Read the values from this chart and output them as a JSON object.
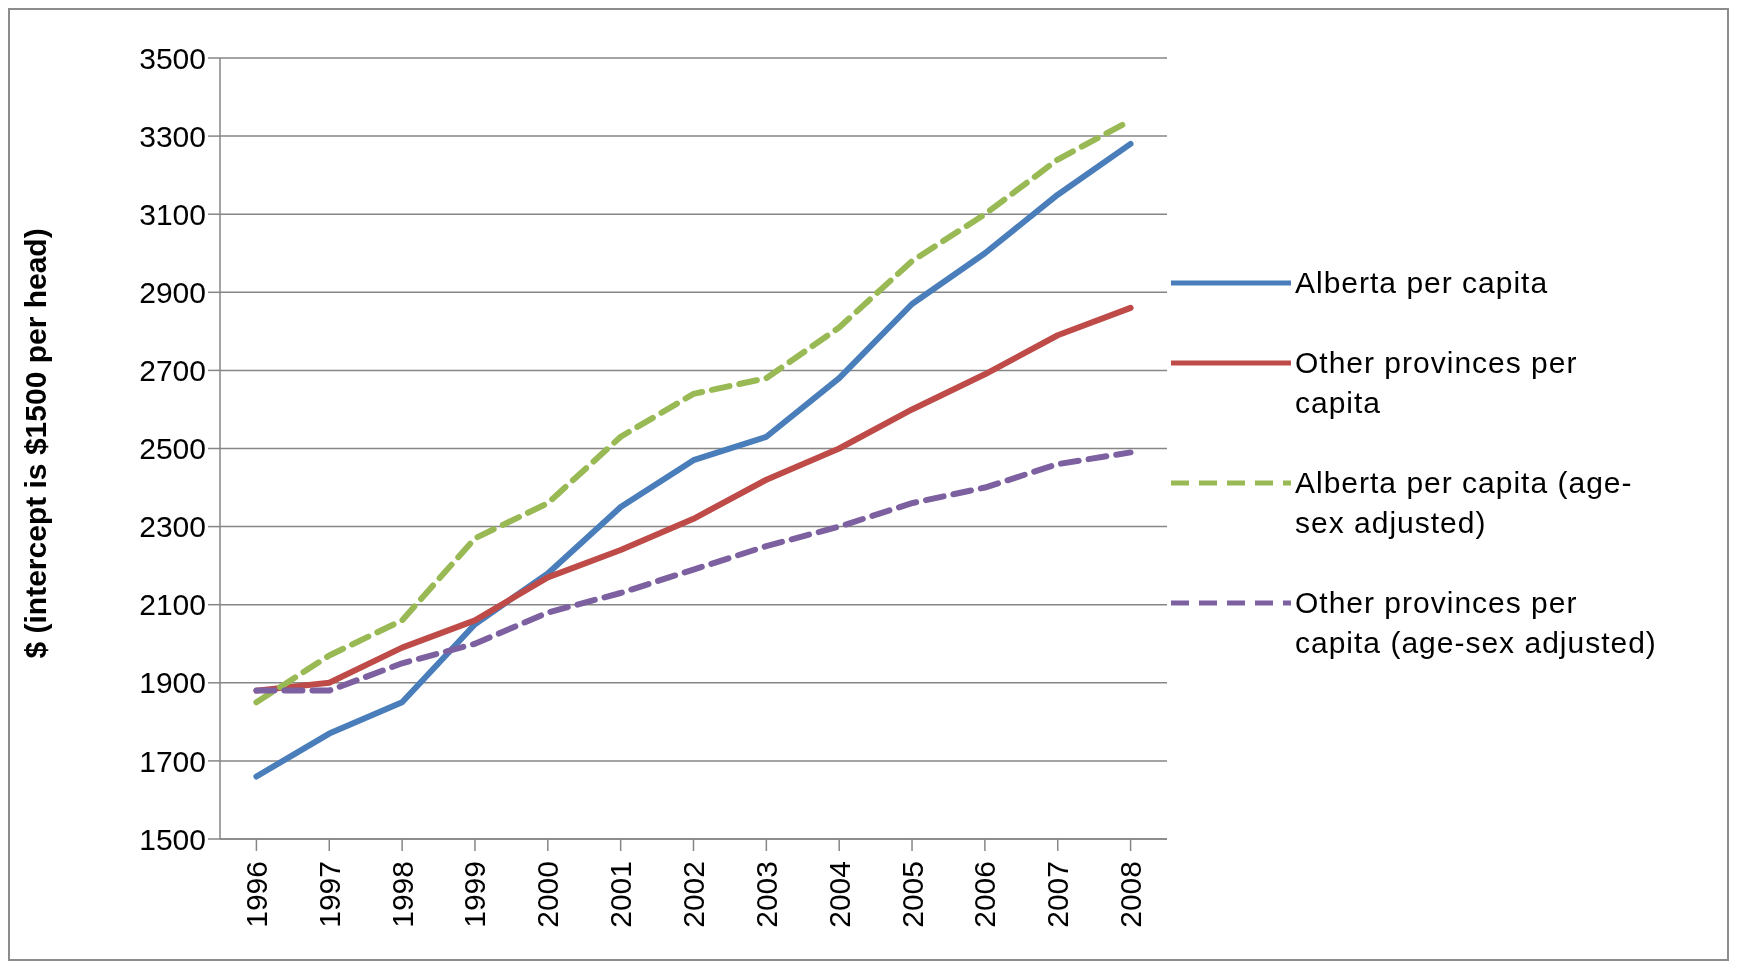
{
  "chart_data": {
    "type": "line",
    "ylabel": "$ (intercept is $1500 per head)",
    "categories": [
      "1996",
      "1997",
      "1998",
      "1999",
      "2000",
      "2001",
      "2002",
      "2003",
      "2004",
      "2005",
      "2006",
      "2007",
      "2008"
    ],
    "series": [
      {
        "name": "Alberta per capita",
        "color": "#4a7ebb",
        "line_style": "solid",
        "values": [
          1660,
          1770,
          1850,
          2050,
          2180,
          2350,
          2470,
          2530,
          2680,
          2870,
          3000,
          3150,
          3280
        ]
      },
      {
        "name": "Other provinces per capita",
        "color": "#be4b48",
        "line_style": "solid",
        "values": [
          1880,
          1900,
          1990,
          2060,
          2170,
          2240,
          2320,
          2420,
          2500,
          2600,
          2690,
          2790,
          2860
        ]
      },
      {
        "name": "Alberta per capita (age-sex adjusted)",
        "color": "#98b954",
        "line_style": "dashed",
        "values": [
          1850,
          1970,
          2060,
          2270,
          2360,
          2530,
          2640,
          2680,
          2810,
          2980,
          3100,
          3240,
          3340
        ]
      },
      {
        "name": "Other provinces per capita (age-sex adjusted)",
        "color": "#7d60a0",
        "line_style": "dashed",
        "values": [
          1880,
          1880,
          1950,
          2000,
          2080,
          2130,
          2190,
          2250,
          2300,
          2360,
          2400,
          2460,
          2490
        ]
      }
    ],
    "ylim": [
      1500,
      3500
    ],
    "yticks": [
      1500,
      1700,
      1900,
      2100,
      2300,
      2500,
      2700,
      2900,
      3100,
      3300,
      3500
    ],
    "grid": "y",
    "legend": "right",
    "marker": "none"
  }
}
